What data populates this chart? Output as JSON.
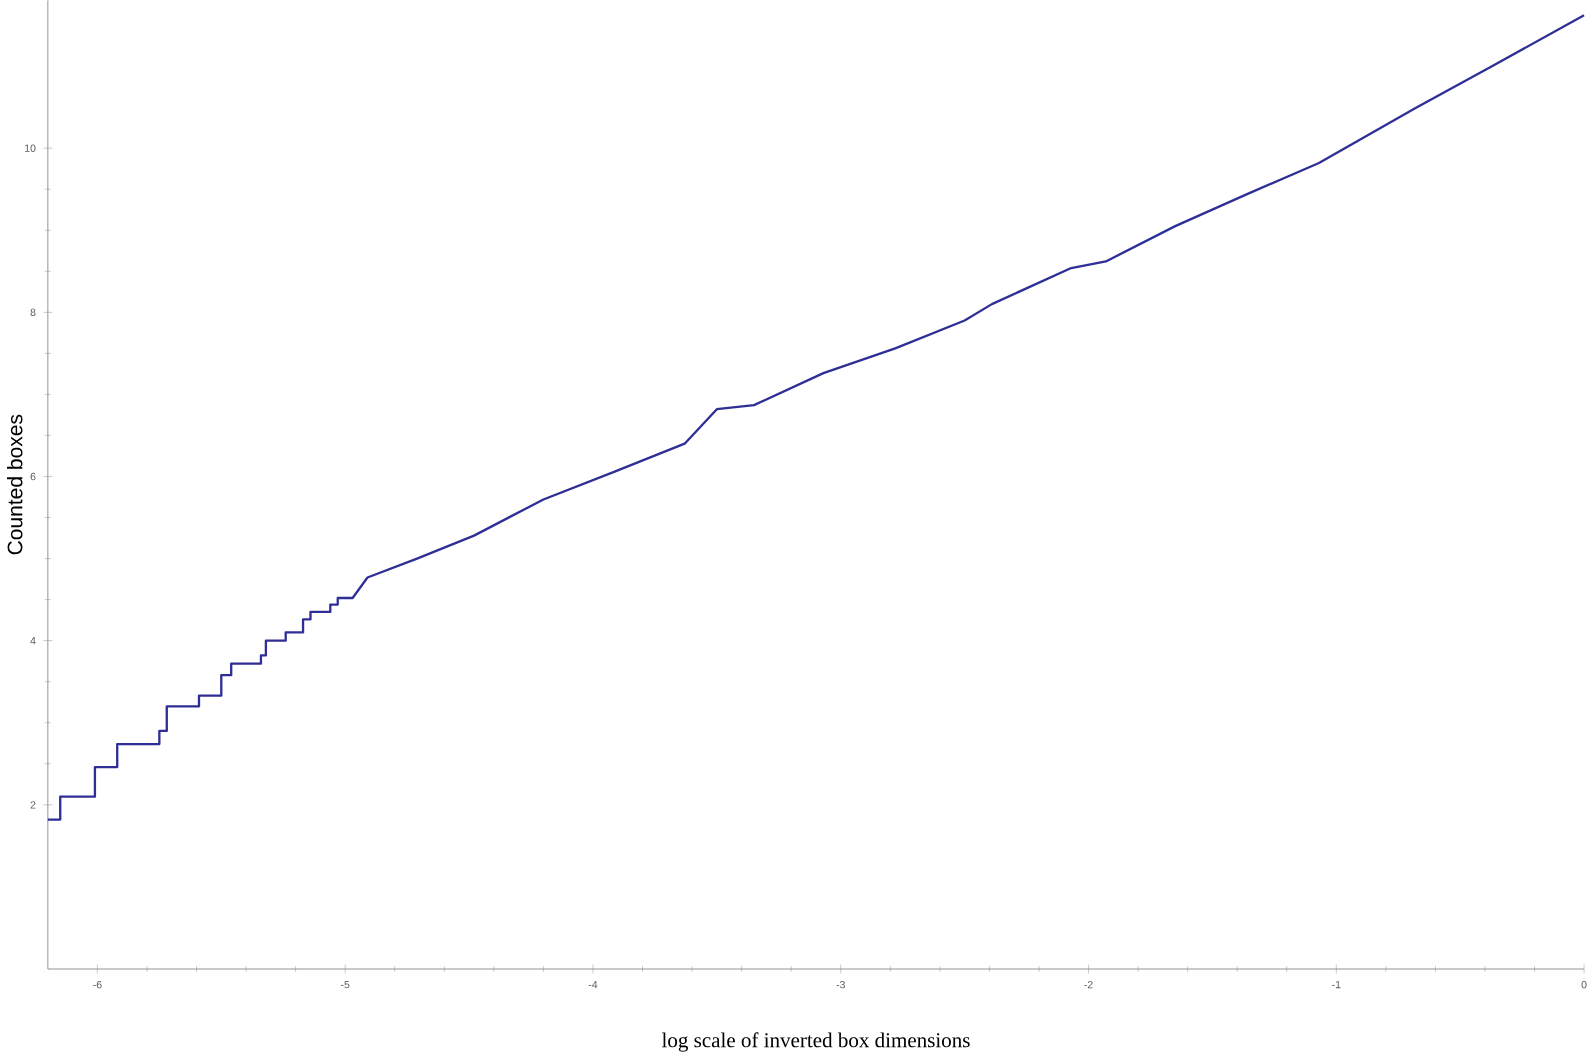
{
  "chart_data": {
    "type": "line",
    "xlabel": "log scale of inverted box dimensions",
    "ylabel": "Counted boxes",
    "x": [
      -6.2,
      -6.15,
      -6.15,
      -6.01,
      -6.01,
      -5.92,
      -5.92,
      -5.75,
      -5.75,
      -5.72,
      -5.72,
      -5.59,
      -5.59,
      -5.5,
      -5.5,
      -5.46,
      -5.46,
      -5.34,
      -5.34,
      -5.32,
      -5.32,
      -5.24,
      -5.24,
      -5.17,
      -5.17,
      -5.14,
      -5.14,
      -5.06,
      -5.06,
      -5.03,
      -5.03,
      -4.97,
      -4.91,
      -4.71,
      -4.48,
      -4.2,
      -3.92,
      -3.63,
      -3.5,
      -3.35,
      -3.07,
      -2.78,
      -2.5,
      -2.39,
      -2.07,
      -1.93,
      -1.65,
      -1.36,
      -1.07,
      -0.68,
      -0.37,
      0
    ],
    "series": [
      {
        "color": "#2e2e96",
        "values": [
          1.82,
          1.82,
          2.1,
          2.1,
          2.46,
          2.46,
          2.74,
          2.74,
          2.9,
          2.9,
          3.2,
          3.2,
          3.33,
          3.33,
          3.58,
          3.58,
          3.72,
          3.72,
          3.82,
          3.82,
          4.0,
          4.0,
          4.1,
          4.1,
          4.26,
          4.26,
          4.35,
          4.35,
          4.44,
          4.44,
          4.52,
          4.52,
          4.77,
          5.0,
          5.28,
          5.72,
          6.05,
          6.4,
          6.82,
          6.87,
          7.26,
          7.56,
          7.9,
          8.1,
          8.54,
          8.62,
          9.05,
          9.44,
          9.82,
          10.49,
          11.0,
          11.62
        ]
      }
    ],
    "xlim": [
      -6.2,
      0
    ],
    "ylim": [
      0,
      11.8
    ],
    "xticks": [
      -6,
      -5,
      -4,
      -3,
      -2,
      -1,
      0
    ],
    "yticks": [
      2,
      4,
      6,
      8,
      10
    ],
    "grid": false,
    "marker": "none",
    "line_style": "solid"
  }
}
